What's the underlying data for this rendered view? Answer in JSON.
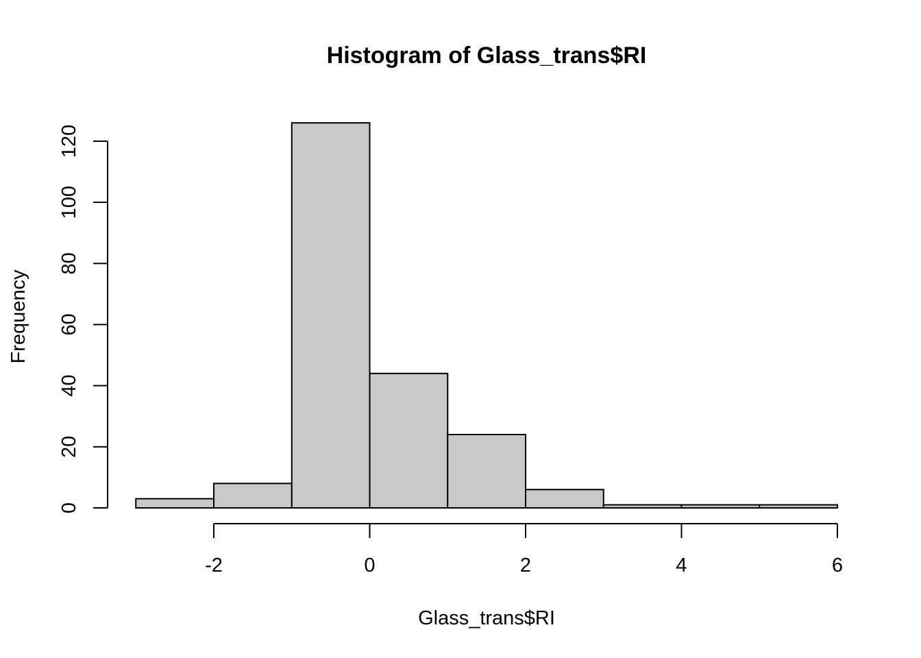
{
  "chart_data": {
    "type": "bar",
    "histogram": true,
    "title": "Histogram of Glass_trans$RI",
    "xlabel": "Glass_trans$RI",
    "ylabel": "Frequency",
    "bins": [
      {
        "start": -3,
        "end": -2,
        "count": 3
      },
      {
        "start": -2,
        "end": -1,
        "count": 8
      },
      {
        "start": -1,
        "end": 0,
        "count": 126
      },
      {
        "start": 0,
        "end": 1,
        "count": 44
      },
      {
        "start": 1,
        "end": 2,
        "count": 24
      },
      {
        "start": 2,
        "end": 3,
        "count": 6
      },
      {
        "start": 3,
        "end": 4,
        "count": 1
      },
      {
        "start": 4,
        "end": 5,
        "count": 1
      },
      {
        "start": 5,
        "end": 6,
        "count": 1
      }
    ],
    "xlim": [
      -3,
      6
    ],
    "ylim": [
      0,
      126
    ],
    "x_ticks": [
      -2,
      0,
      2,
      4,
      6
    ],
    "x_tick_labels": [
      "-2",
      "0",
      "2",
      "4",
      "6"
    ],
    "y_ticks": [
      0,
      20,
      40,
      60,
      80,
      100,
      120
    ],
    "y_tick_labels": [
      "0",
      "20",
      "40",
      "60",
      "80",
      "100",
      "120"
    ],
    "bar_fill": "#c9c9c9",
    "bar_stroke": "#000000",
    "grid": false,
    "legend": "none"
  }
}
